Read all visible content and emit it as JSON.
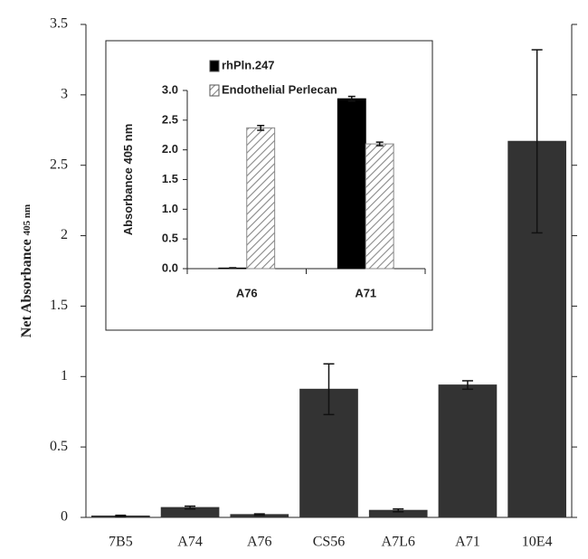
{
  "chart_data": [
    {
      "type": "bar",
      "ylabel": "Net Absorbance",
      "ylabel_sub": "405 nm",
      "categories": [
        "7B5",
        "A74",
        "A76",
        "CS56",
        "A7L6",
        "A71",
        "10E4"
      ],
      "values": [
        0.01,
        0.07,
        0.02,
        0.91,
        0.05,
        0.94,
        2.67
      ],
      "errors": [
        0.005,
        0.01,
        0.005,
        0.18,
        0.01,
        0.03,
        0.65
      ],
      "color": "#333333",
      "ylim": [
        0,
        3.5
      ],
      "yticks": [
        0,
        0.5,
        1,
        1.5,
        2,
        2.5,
        3,
        3.5
      ]
    },
    {
      "type": "grouped-bar",
      "ylabel": "Absorbance  405 nm",
      "categories": [
        "A76",
        "A71"
      ],
      "series": [
        {
          "name": "rhPln.247",
          "color": "#000000",
          "values": [
            0.01,
            2.86
          ],
          "errors": [
            0.005,
            0.04
          ]
        },
        {
          "name": "Endothelial Perlecan",
          "color": "#ffffff",
          "pattern": "hatch",
          "values": [
            2.37,
            2.1
          ],
          "errors": [
            0.04,
            0.03
          ]
        }
      ],
      "ylim": [
        0,
        3.0
      ],
      "yticks": [
        {
          "value": 0,
          "label": "0.0"
        },
        {
          "value": 0.5,
          "label": "0.5"
        },
        {
          "value": 1,
          "label": "1.0"
        },
        {
          "value": 1.5,
          "label": "1.5"
        },
        {
          "value": 2,
          "label": "2.0"
        },
        {
          "value": 2.5,
          "label": "2.5"
        },
        {
          "value": 3,
          "label": "3.0"
        }
      ]
    }
  ]
}
